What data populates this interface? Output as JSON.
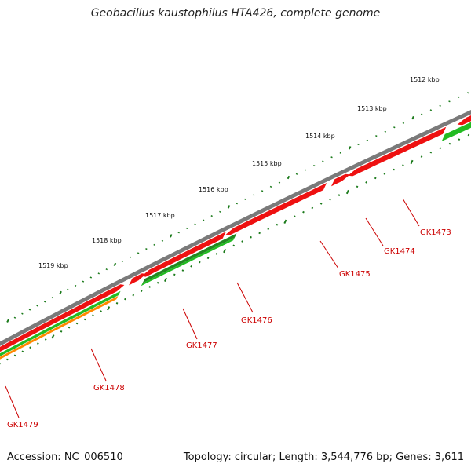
{
  "title": "Geobacillus kaustophilus HTA426, complete genome",
  "footer": {
    "accession": "Accession: NC_006510",
    "topology": "Topology: circular; Length: 3,544,776 bp; Genes: 3,611"
  },
  "colors": {
    "backbone": "#7a7a7a",
    "forward_gene": "#ee1111",
    "reverse_gene": "#22bb22",
    "reverse_gene_dark": "#228822",
    "orange_feature": "#ff8800",
    "tick": "#1a7a1a",
    "label": "#cc0000"
  },
  "kbp_ticks": [
    "1512 kbp",
    "1513 kbp",
    "1514 kbp",
    "1515 kbp",
    "1516 kbp",
    "1517 kbp",
    "1518 kbp",
    "1519 kbp"
  ],
  "genes": [
    {
      "name": "GK1473"
    },
    {
      "name": "GK1474"
    },
    {
      "name": "GK1475"
    },
    {
      "name": "GK1476"
    },
    {
      "name": "GK1477"
    },
    {
      "name": "GK1478"
    },
    {
      "name": "GK1479"
    }
  ]
}
